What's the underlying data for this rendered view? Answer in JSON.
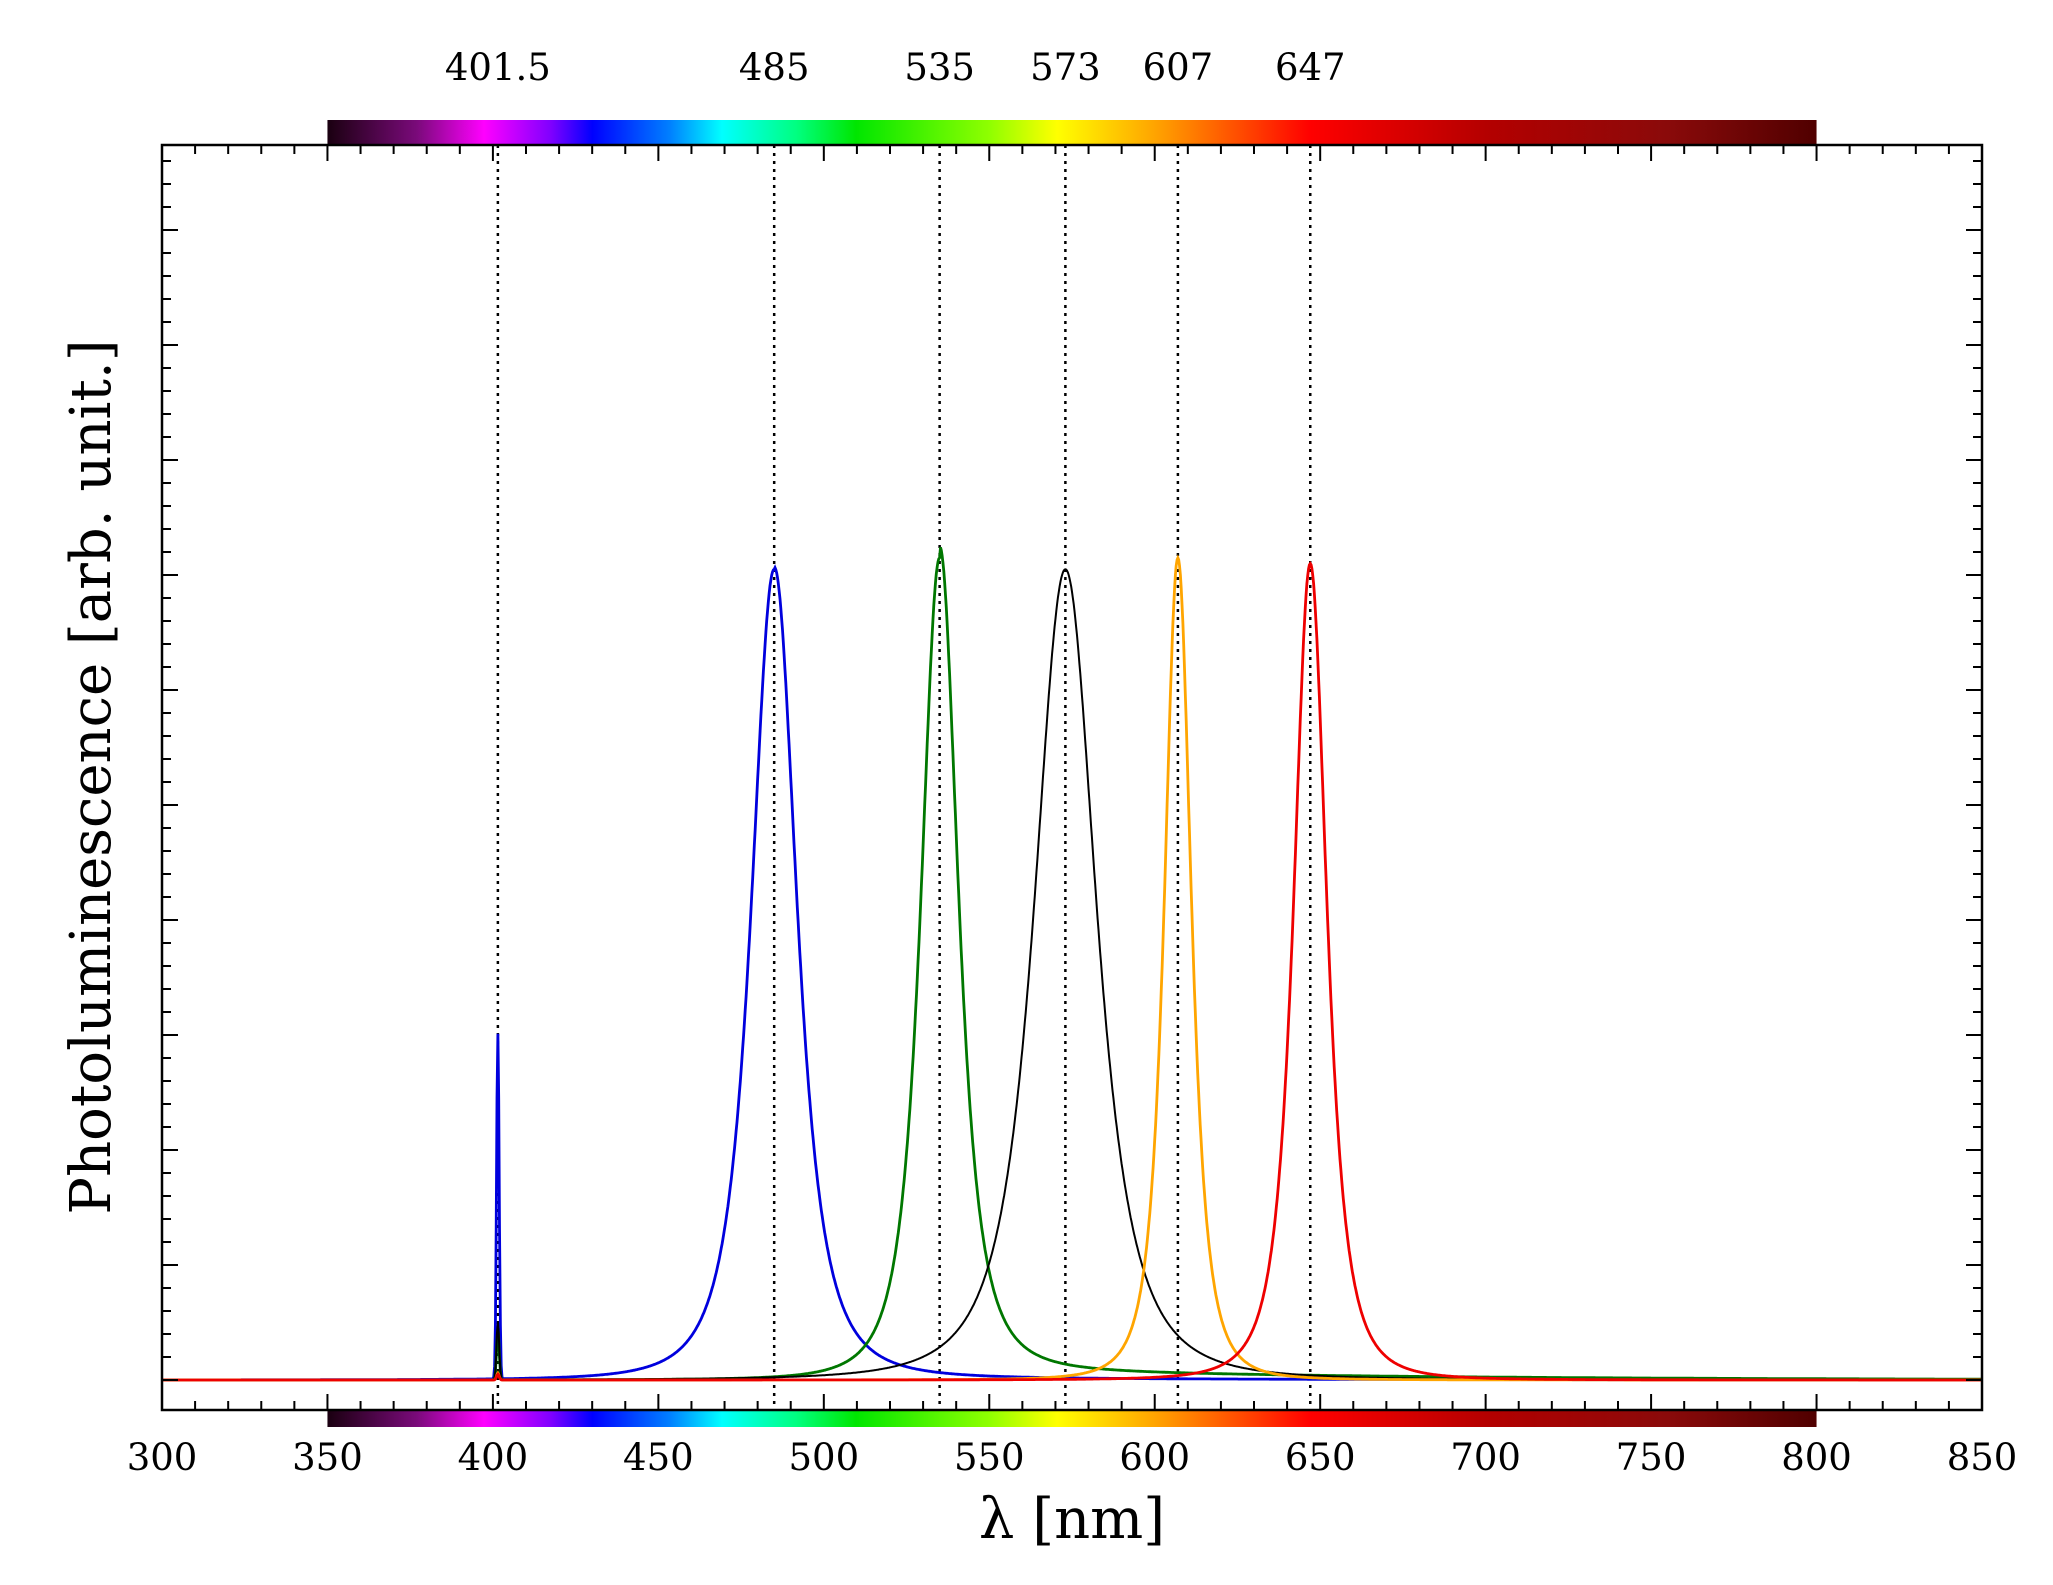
{
  "chart_data": {
    "type": "line",
    "title": "",
    "xlabel": "λ [nm]",
    "ylabel": "Photoluminescence [arb. unit.]",
    "xlim": [
      300,
      850
    ],
    "ylim": [
      0,
      1.1
    ],
    "x_ticks": [
      300,
      350,
      400,
      450,
      500,
      550,
      600,
      650,
      700,
      750,
      800,
      850
    ],
    "x_minor_step": 10,
    "y_tick_labels_shown": false,
    "grid": false,
    "legend": "none",
    "spectrum_bar": {
      "from": 350,
      "to": 800,
      "positions": "top and bottom"
    },
    "peak_markers": [
      {
        "label": "401.5",
        "x": 401.5
      },
      {
        "label": "485",
        "x": 485
      },
      {
        "label": "535",
        "x": 535
      },
      {
        "label": "573",
        "x": 573
      },
      {
        "label": "607",
        "x": 607
      },
      {
        "label": "647",
        "x": 647
      }
    ],
    "series": [
      {
        "color": "#0000dd",
        "peak": 485,
        "amplitude": 0.705,
        "width": 11,
        "excitation_amplitude": 0.3,
        "tail": 0.002
      },
      {
        "color": "#007700",
        "peak": 535,
        "amplitude": 0.715,
        "width": 9,
        "excitation_amplitude": 0.045,
        "tail": 0.01
      },
      {
        "color": "#000000",
        "peak": 573,
        "amplitude": 0.705,
        "width": 15,
        "excitation_amplitude": 0.05,
        "tail": 0.0
      },
      {
        "color": "#ffa500",
        "peak": 607,
        "amplitude": 0.715,
        "width": 6.5,
        "excitation_amplitude": 0.006,
        "tail": 0.0
      },
      {
        "color": "#ee0000",
        "peak": 647,
        "amplitude": 0.71,
        "width": 8,
        "excitation_amplitude": 0.005,
        "tail": 0.0
      }
    ]
  }
}
